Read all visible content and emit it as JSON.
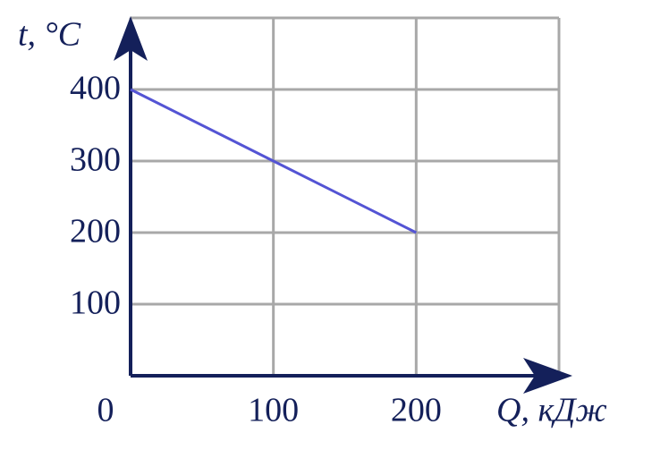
{
  "chart_data": {
    "type": "line",
    "x_label": "Q, кДж",
    "y_label": "t, °C",
    "x": [
      0,
      100,
      200
    ],
    "values": [
      400,
      300,
      200
    ],
    "color": "#5454d4",
    "xlim": [
      0,
      300
    ],
    "ylim": [
      0,
      500
    ],
    "xticks": [
      0,
      100,
      200
    ],
    "yticks": [
      100,
      200,
      300,
      400
    ],
    "grid": true
  }
}
